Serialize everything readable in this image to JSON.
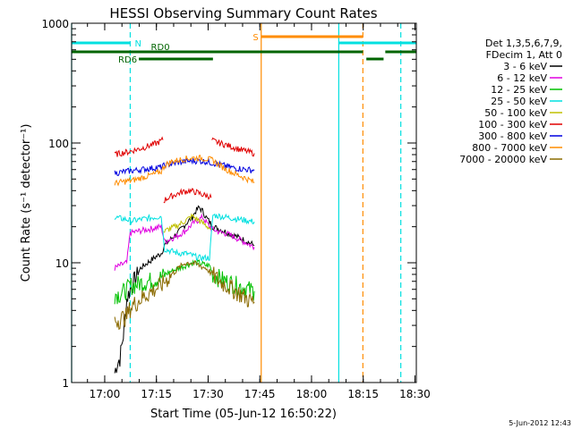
{
  "chart_data": {
    "type": "line",
    "title": "HESSI Observing Summary Count Rates",
    "xlabel": "Start Time (05-Jun-12 16:50:22)",
    "ylabel": "Count Rate (s⁻¹ detector⁻¹)",
    "ylim": [
      1,
      1000
    ],
    "yscale": "log",
    "xlim_minutes": [
      0,
      100
    ],
    "x_ticks": [
      "17:00",
      "17:15",
      "17:30",
      "17:45",
      "18:00",
      "18:15",
      "18:30"
    ],
    "x_tick_minutes": [
      9.6,
      24.6,
      39.6,
      54.6,
      69.6,
      84.6,
      99.6
    ],
    "y_ticks": [
      1,
      10,
      100,
      1000
    ],
    "y_tick_labels": [
      "1",
      "10",
      "100",
      "1000"
    ],
    "legend_placement": "right",
    "legend_header": [
      "Det 1,3,5,6,7,9,",
      "FDecim 1, Att 0"
    ],
    "footer_date": "5-Jun-2012 12:43",
    "data_interval_minutes": [
      12.5,
      53.5
    ],
    "gaps_minutes": [
      [
        26.5,
        26.7
      ],
      [
        40.5,
        40.7
      ]
    ],
    "series": [
      {
        "name": "3 - 6 keV",
        "color": "#000000",
        "x": [
          12.5,
          13.0,
          14.0,
          15.0,
          16.0,
          17.0,
          18.0,
          20.0,
          22.0,
          24.0,
          26.0,
          27.0,
          29.0,
          31.0,
          33.0,
          35.0,
          36.0,
          37.0,
          38.0,
          39.0,
          40.0,
          41.0,
          43.0,
          45.0,
          47.0,
          49.0,
          51.0,
          53.0
        ],
        "y": [
          1.2,
          1.4,
          1.6,
          2.5,
          5,
          6,
          7,
          9,
          10,
          11,
          12,
          14,
          16,
          18,
          21,
          24,
          27,
          29,
          27,
          24,
          22,
          20,
          19,
          18,
          17,
          16,
          15,
          14
        ]
      },
      {
        "name": "6 - 12 keV",
        "color": "#e000e0",
        "x": [
          12.5,
          14.0,
          16.0,
          17.0,
          18.0,
          20.0,
          22.0,
          24.0,
          26.0,
          27.0,
          29.0,
          31.0,
          33.0,
          35.0,
          37.0,
          38.0,
          39.0,
          40.0,
          41.0,
          43.0,
          45.0,
          47.0,
          49.0,
          51.0,
          53.0
        ],
        "y": [
          9,
          9.5,
          10,
          18,
          18,
          18.5,
          19,
          19.5,
          20,
          15,
          16,
          17,
          18.5,
          21,
          23,
          24,
          22,
          20,
          19,
          18,
          17.5,
          16.5,
          15.5,
          14.5,
          13.5
        ]
      },
      {
        "name": "12 - 25 keV",
        "color": "#00c000",
        "x": [
          12.5,
          14.0,
          16.0,
          17.0,
          18.0,
          20.0,
          22.0,
          24.0,
          26.0,
          27.0,
          29.0,
          31.0,
          33.0,
          35.0,
          37.0,
          39.0,
          40.0,
          41.0,
          43.0,
          45.0,
          47.0,
          49.0,
          51.0,
          53.0
        ],
        "y": [
          5.5,
          5.5,
          6,
          6.5,
          6.5,
          6.8,
          7,
          7.3,
          7.6,
          8,
          8.5,
          9,
          9.5,
          10,
          10,
          9.5,
          9.5,
          8,
          7.5,
          7,
          6.7,
          6.4,
          6.1,
          5.8
        ]
      },
      {
        "name": "25 - 50 keV",
        "color": "#00e0e0",
        "x": [
          12.5,
          14.0,
          16.0,
          17.0,
          18.0,
          20.0,
          22.0,
          24.0,
          26.0,
          27.0,
          29.0,
          31.0,
          33.0,
          35.0,
          37.0,
          39.0,
          40.0,
          41.0,
          43.0,
          45.0,
          47.0,
          49.0,
          51.0,
          53.0
        ],
        "y": [
          24,
          23.5,
          23,
          22.5,
          22.5,
          23,
          23.5,
          24,
          24.5,
          13,
          12.5,
          12,
          12,
          11.5,
          11,
          11,
          11,
          25,
          24.5,
          24,
          23.5,
          23,
          22.5,
          22
        ]
      },
      {
        "name": "50 - 100 keV",
        "color": "#c0c000",
        "x": [
          26.7,
          28.0,
          30.0,
          32.0,
          33.5,
          35.0,
          36.5,
          38.0,
          39.5,
          40.5
        ],
        "y": [
          18,
          19,
          20,
          21.5,
          23,
          24.5,
          23,
          21.5,
          20,
          19
        ]
      },
      {
        "name": "100 - 300 keV",
        "color": "#e00000",
        "x": [
          12.5,
          14.0,
          16.0,
          17.0,
          18.0,
          20.0,
          22.0,
          24.0,
          26.0,
          26.5,
          26.7,
          28.0,
          30.0,
          32.0,
          34.0,
          36.0,
          38.0,
          40.0,
          40.5,
          40.7,
          43.0,
          45.0,
          47.0,
          49.0,
          51.0,
          53.0
        ],
        "y": [
          80,
          82,
          84,
          85,
          87,
          90,
          94,
          98,
          104,
          108,
          33,
          35,
          37,
          39,
          40,
          39,
          37,
          36,
          35,
          105,
          100,
          96,
          92,
          88,
          85,
          82
        ]
      },
      {
        "name": "300 - 800 keV",
        "color": "#0000e0",
        "x": [
          12.5,
          14.0,
          16.0,
          17.0,
          18.0,
          20.0,
          22.0,
          24.0,
          26.0,
          27.0,
          29.0,
          31.0,
          33.0,
          35.0,
          37.0,
          39.0,
          41.0,
          43.0,
          45.0,
          47.0,
          49.0,
          51.0,
          53.0
        ],
        "y": [
          56,
          57,
          58,
          58.5,
          59,
          60,
          61,
          62,
          63,
          65,
          67,
          69,
          70,
          71,
          71,
          70,
          68,
          66,
          64,
          62,
          61,
          60,
          59
        ]
      },
      {
        "name": "800 - 7000 keV",
        "color": "#ff8c00",
        "x": [
          12.5,
          14.0,
          16.0,
          18.0,
          20.0,
          22.0,
          24.0,
          26.0,
          27.0,
          29.0,
          31.0,
          33.0,
          35.0,
          37.0,
          39.0,
          41.0,
          43.0,
          45.0,
          47.0,
          49.0,
          51.0,
          53.0
        ],
        "y": [
          46,
          47,
          48,
          49,
          51,
          53,
          55,
          58,
          65,
          70,
          72,
          74,
          75,
          75,
          74,
          72,
          65,
          60,
          56,
          53,
          50,
          47
        ]
      },
      {
        "name": "7000 - 20000 keV",
        "color": "#8b6a00",
        "x": [
          12.5,
          14.0,
          16.0,
          17.0,
          18.0,
          20.0,
          22.0,
          24.0,
          26.0,
          27.0,
          29.0,
          31.0,
          33.0,
          35.0,
          37.0,
          39.0,
          41.0,
          43.0,
          45.0,
          47.0,
          49.0,
          51.0,
          53.0
        ],
        "y": [
          3.3,
          3.4,
          3.6,
          4.2,
          4.5,
          5,
          5.5,
          6,
          6.5,
          7,
          8,
          9,
          10,
          10,
          9.5,
          9,
          8,
          7,
          6.5,
          6,
          5.5,
          5,
          4.7
        ]
      }
    ],
    "annotations": {
      "vertical_lines": [
        {
          "minute": 0,
          "color": "#00e0e0",
          "style": "solid"
        },
        {
          "minute": 17.0,
          "color": "#00e0e0",
          "style": "dashed"
        },
        {
          "minute": 55.0,
          "color": "#ff8c00",
          "style": "solid"
        },
        {
          "minute": 77.5,
          "color": "#00e0e0",
          "style": "solid"
        },
        {
          "minute": 84.5,
          "color": "#ff8c00",
          "style": "dashed"
        },
        {
          "minute": 95.5,
          "color": "#00e0e0",
          "style": "dashed"
        }
      ],
      "flag_bars": [
        {
          "label": "N",
          "color": "#00e0e0",
          "start": 0,
          "end": 17.0,
          "level": 1
        },
        {
          "label": "",
          "color": "#00e0e0",
          "start": 77.5,
          "end": 100,
          "level": 1
        },
        {
          "label": "S",
          "color": "#ff8c00",
          "start": 55.0,
          "end": 84.5,
          "level": 0
        },
        {
          "label": "RD0",
          "color": "#006400",
          "start": 0,
          "end": 84.5,
          "level": 2
        },
        {
          "label": "RD6",
          "color": "#006400",
          "start": 19.5,
          "end": 41.0,
          "level": 3
        },
        {
          "label": "",
          "color": "#006400",
          "start": 41.0,
          "end": 84.5,
          "level": 2
        },
        {
          "label": "",
          "color": "#006400",
          "start": 85.5,
          "end": 90.5,
          "level": 3
        },
        {
          "label": "",
          "color": "#006400",
          "start": 91.0,
          "end": 100,
          "level": 2
        }
      ]
    }
  }
}
